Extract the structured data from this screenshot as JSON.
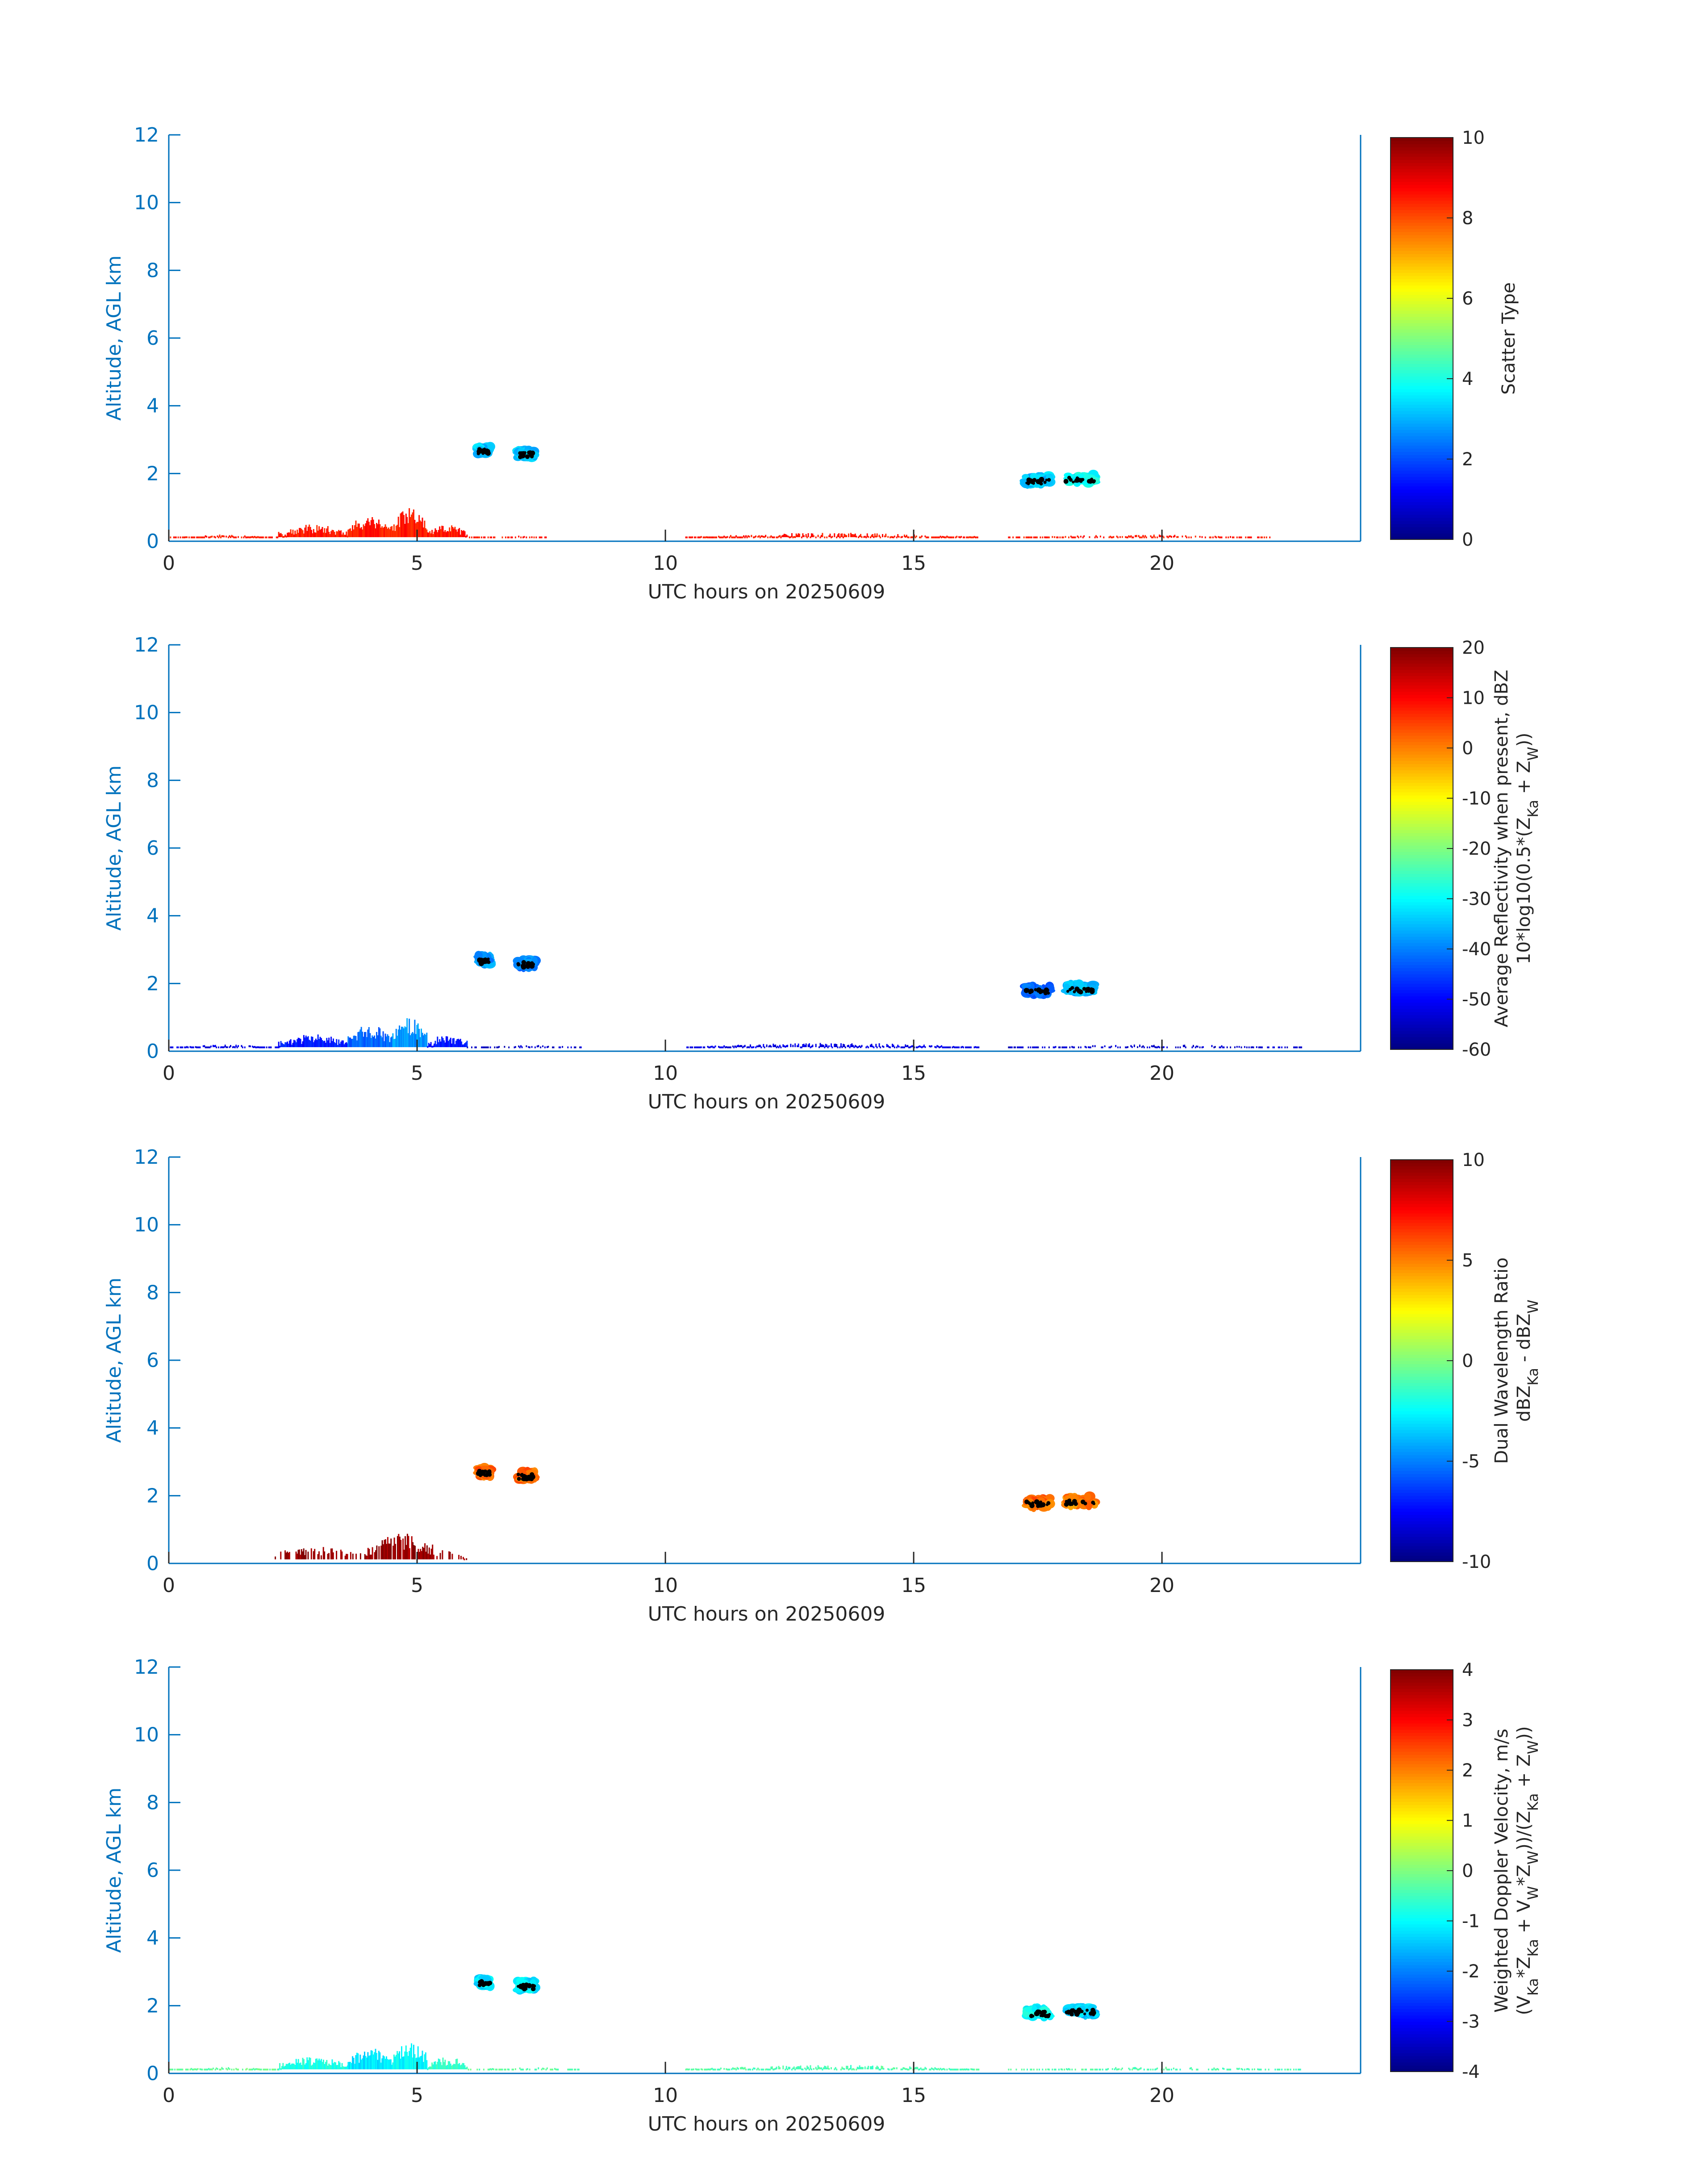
{
  "figure": {
    "date": "20250609"
  },
  "colors": {
    "axis": "#0072BD",
    "text": "#262626",
    "edge": "#000000"
  },
  "chart_data": [
    {
      "type": "heatmap",
      "id": "scatter-type",
      "title": "",
      "xlabel": "UTC hours on 20250609",
      "ylabel": "Altitude, AGL km",
      "xlim": [
        0,
        24
      ],
      "ylim": [
        0,
        12
      ],
      "xticks": [
        0,
        5,
        10,
        15,
        20
      ],
      "yticks": [
        0,
        2,
        4,
        6,
        8,
        10,
        12
      ],
      "colorbar": {
        "label_lines": [
          "Scatter Type"
        ],
        "min": 0,
        "max": 10,
        "ticks": [
          0,
          2,
          4,
          6,
          8,
          10
        ],
        "colormap": "jet"
      },
      "fill_value": 8.5,
      "echoes": [
        {
          "t0": 0.0,
          "t1": 2.2,
          "hmax": 0.2,
          "v": 8.5,
          "gappy": 0.25
        },
        {
          "t0": 2.2,
          "t1": 3.6,
          "hmax": 0.5,
          "v": 8.5,
          "gappy": 0.0
        },
        {
          "t0": 3.6,
          "t1": 4.5,
          "hmax": 0.8,
          "v": 8.5,
          "gappy": 0.0
        },
        {
          "t0": 4.5,
          "t1": 5.2,
          "hmax": 1.0,
          "v": 8.5,
          "gappy": 0.0
        },
        {
          "t0": 5.2,
          "t1": 6.0,
          "hmax": 0.5,
          "v": 8.5,
          "gappy": 0.0
        },
        {
          "t0": 6.0,
          "t1": 7.7,
          "hmax": 0.2,
          "v": 8.5,
          "gappy": 0.5
        },
        {
          "t0": 10.4,
          "t1": 16.3,
          "hmax": 0.25,
          "v": 8.5,
          "gappy": 0.2
        },
        {
          "t0": 16.9,
          "t1": 22.2,
          "hmax": 0.2,
          "v": 8.5,
          "gappy": 0.45
        }
      ],
      "clouds": [
        {
          "t": 6.35,
          "h": 2.7,
          "w": 0.25,
          "v": 3.2
        },
        {
          "t": 7.2,
          "h": 2.6,
          "w": 0.35,
          "v": 3.2
        },
        {
          "t": 17.5,
          "h": 1.8,
          "w": 0.5,
          "v": 3.2
        },
        {
          "t": 18.35,
          "h": 1.85,
          "w": 0.6,
          "v": 3.8
        }
      ]
    },
    {
      "type": "heatmap",
      "id": "reflectivity",
      "title": "",
      "xlabel": "UTC hours on 20250609",
      "ylabel": "Altitude, AGL km",
      "xlim": [
        0,
        24
      ],
      "ylim": [
        0,
        12
      ],
      "xticks": [
        0,
        5,
        10,
        15,
        20
      ],
      "yticks": [
        0,
        2,
        4,
        6,
        8,
        10,
        12
      ],
      "colorbar": {
        "label_lines": [
          "Average Reflectivity when present, dBZ",
          "10*log10(0.5*(Z_Ka + Z_W))"
        ],
        "min": -60,
        "max": 20,
        "ticks": [
          -60,
          -50,
          -40,
          -30,
          -20,
          -10,
          0,
          10,
          20
        ],
        "colormap": "jet"
      },
      "echoes": [
        {
          "t0": 0.0,
          "t1": 2.2,
          "hmax": 0.2,
          "v": -52,
          "gappy": 0.25
        },
        {
          "t0": 2.2,
          "t1": 3.6,
          "hmax": 0.5,
          "v": -48,
          "gappy": 0.0
        },
        {
          "t0": 3.6,
          "t1": 4.5,
          "hmax": 0.8,
          "v": -42,
          "gappy": 0.0
        },
        {
          "t0": 4.5,
          "t1": 5.2,
          "hmax": 1.0,
          "v": -38,
          "gappy": 0.0
        },
        {
          "t0": 5.2,
          "t1": 6.0,
          "hmax": 0.5,
          "v": -48,
          "gappy": 0.0
        },
        {
          "t0": 6.0,
          "t1": 8.3,
          "hmax": 0.2,
          "v": -54,
          "gappy": 0.5
        },
        {
          "t0": 10.4,
          "t1": 16.3,
          "hmax": 0.25,
          "v": -52,
          "gappy": 0.2
        },
        {
          "t0": 16.9,
          "t1": 22.8,
          "hmax": 0.2,
          "v": -54,
          "gappy": 0.45
        }
      ],
      "clouds": [
        {
          "t": 6.35,
          "h": 2.7,
          "w": 0.25,
          "v": -38
        },
        {
          "t": 7.2,
          "h": 2.6,
          "w": 0.35,
          "v": -40
        },
        {
          "t": 17.5,
          "h": 1.8,
          "w": 0.5,
          "v": -42
        },
        {
          "t": 18.35,
          "h": 1.85,
          "w": 0.6,
          "v": -36
        }
      ]
    },
    {
      "type": "heatmap",
      "id": "dual-wavelength-ratio",
      "title": "",
      "xlabel": "UTC hours on 20250609",
      "ylabel": "Altitude, AGL km",
      "xlim": [
        0,
        24
      ],
      "ylim": [
        0,
        12
      ],
      "xticks": [
        0,
        5,
        10,
        15,
        20
      ],
      "yticks": [
        0,
        2,
        4,
        6,
        8,
        10,
        12
      ],
      "colorbar": {
        "label_lines": [
          "Dual Wavelength Ratio",
          "dBZ_Ka - dBZ_W"
        ],
        "min": -10,
        "max": 10,
        "ticks": [
          -10,
          -5,
          0,
          5,
          10
        ],
        "colormap": "jet"
      },
      "echoes": [
        {
          "t0": 2.0,
          "t1": 4.0,
          "hmax": 0.5,
          "v": 9.5,
          "gappy": 0.45
        },
        {
          "t0": 4.0,
          "t1": 5.3,
          "hmax": 0.9,
          "v": 9.5,
          "gappy": 0.1
        },
        {
          "t0": 5.3,
          "t1": 6.0,
          "hmax": 0.45,
          "v": 9.5,
          "gappy": 0.4
        }
      ],
      "clouds": [
        {
          "t": 6.35,
          "h": 2.7,
          "w": 0.25,
          "v": 5.5
        },
        {
          "t": 7.2,
          "h": 2.6,
          "w": 0.35,
          "v": 5.5
        },
        {
          "t": 17.5,
          "h": 1.8,
          "w": 0.5,
          "v": 5.5
        },
        {
          "t": 18.35,
          "h": 1.85,
          "w": 0.6,
          "v": 5.0
        }
      ]
    },
    {
      "type": "heatmap",
      "id": "doppler-velocity",
      "title": "",
      "xlabel": "UTC hours on 20250609",
      "ylabel": "Altitude, AGL km",
      "xlim": [
        0,
        24
      ],
      "ylim": [
        0,
        12
      ],
      "xticks": [
        0,
        5,
        10,
        15,
        20
      ],
      "yticks": [
        0,
        2,
        4,
        6,
        8,
        10,
        12
      ],
      "colorbar": {
        "label_lines": [
          "Weighted Doppler Velocity, m/s",
          "(V_Ka*Z_Ka + V_W*Z_W))/(Z_Ka + Z_W))"
        ],
        "min": -4,
        "max": 4,
        "ticks": [
          -4,
          -3,
          -2,
          -1,
          0,
          1,
          2,
          3,
          4
        ],
        "colormap": "jet"
      },
      "echoes": [
        {
          "t0": 0.0,
          "t1": 2.2,
          "hmax": 0.2,
          "v": -0.2,
          "gappy": 0.25
        },
        {
          "t0": 2.2,
          "t1": 3.6,
          "hmax": 0.5,
          "v": -0.8,
          "gappy": 0.0
        },
        {
          "t0": 3.6,
          "t1": 4.5,
          "hmax": 0.8,
          "v": -1.2,
          "gappy": 0.0
        },
        {
          "t0": 4.5,
          "t1": 5.2,
          "hmax": 1.0,
          "v": -1.0,
          "gappy": 0.0
        },
        {
          "t0": 5.2,
          "t1": 6.0,
          "hmax": 0.5,
          "v": -0.6,
          "gappy": 0.0
        },
        {
          "t0": 6.0,
          "t1": 8.3,
          "hmax": 0.2,
          "v": -0.3,
          "gappy": 0.5
        },
        {
          "t0": 10.4,
          "t1": 16.3,
          "hmax": 0.25,
          "v": -0.4,
          "gappy": 0.2
        },
        {
          "t0": 16.9,
          "t1": 22.8,
          "hmax": 0.2,
          "v": -0.4,
          "gappy": 0.45
        }
      ],
      "clouds": [
        {
          "t": 6.35,
          "h": 2.7,
          "w": 0.25,
          "v": -1.2
        },
        {
          "t": 7.2,
          "h": 2.6,
          "w": 0.35,
          "v": -1.2
        },
        {
          "t": 17.5,
          "h": 1.8,
          "w": 0.5,
          "v": -1.0
        },
        {
          "t": 18.35,
          "h": 1.85,
          "w": 0.6,
          "v": -1.4
        }
      ]
    }
  ]
}
